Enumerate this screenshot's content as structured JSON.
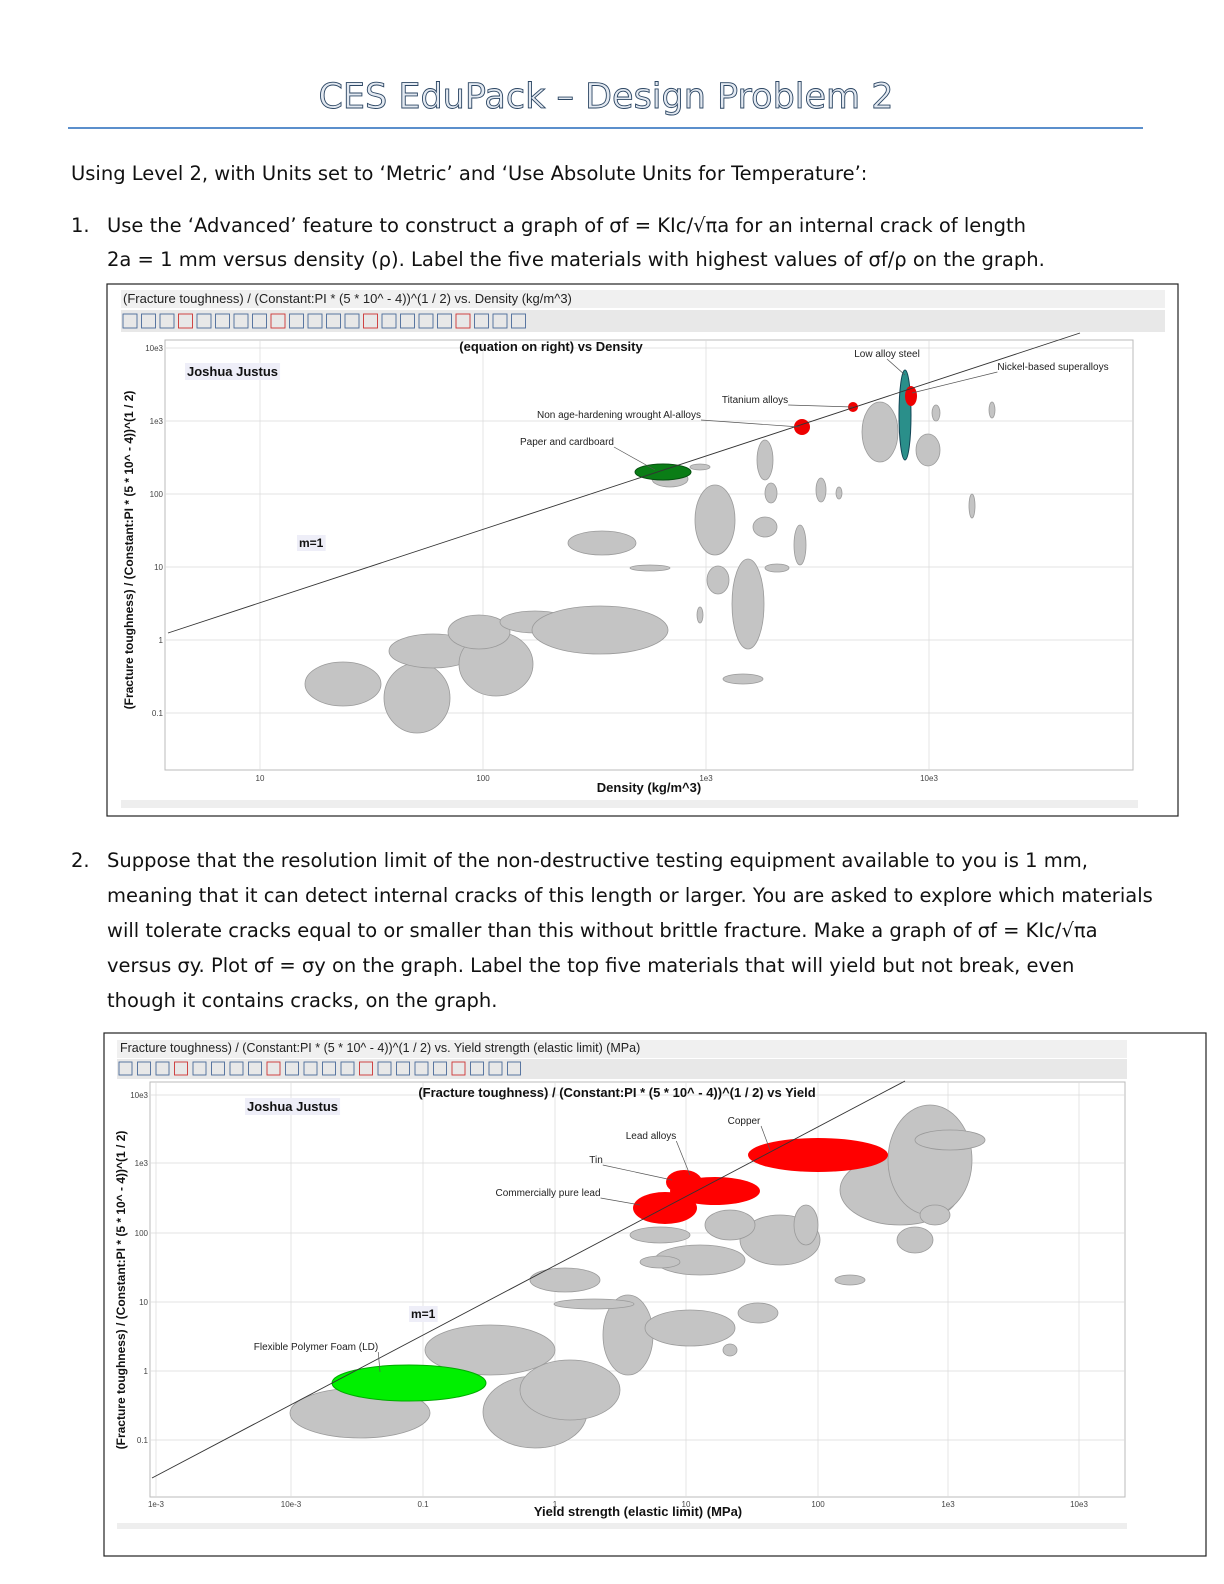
{
  "header": {
    "title": "CES EduPack – Design Problem 2"
  },
  "intro": "Using Level 2, with Units set to ‘Metric’ and ‘Use Absolute Units for Temperature’:",
  "questions": [
    {
      "number": "1.",
      "lines": [
        "Use the ‘Advanced’ feature to construct a graph of σf = KIc/√πa for an internal crack of length",
        "2a = 1 mm versus density (ρ).  Label the five materials with highest values of σf/ρ on the graph."
      ]
    },
    {
      "number": "2.",
      "lines": [
        "Suppose that the resolution limit of the non-destructive testing equipment available to you is 1 mm,",
        "meaning that it can detect internal cracks of this length or larger. You are asked to explore which materials",
        "will tolerate cracks equal to or smaller than this without brittle fracture.  Make a graph of σf = KIc/√πa",
        "versus σy.  Plot σf = σy on the graph.  Label the top five materials that will yield but not break, even",
        "though it contains cracks, on the graph."
      ]
    }
  ],
  "figures": [
    {
      "header": "(Fracture toughness) / (Constant:PI * (5 * 10^ - 4))^(1 / 2) vs. Density (kg/m^3)",
      "chart_title": "(equation on right) vs Density",
      "author": "Joshua Justus",
      "slope_label": "m=1",
      "x_axis_label": "Density (kg/m^3)",
      "y_axis_label": "(Fracture toughness) / (Constant:PI * (5 * 10^ - 4))^(1 / 2)",
      "xticks": [
        "10",
        "100",
        "1e3",
        "10e3"
      ],
      "yticks": [
        "10e3",
        "1e3",
        "100",
        "10",
        "1",
        "0.1"
      ],
      "annotations": [
        "Low alloy steel",
        "Nickel-based superalloys",
        "Titanium alloys",
        "Non age-hardening wrought Al-alloys",
        "Paper and cardboard"
      ]
    },
    {
      "header": "Fracture toughness) / (Constant:PI * (5 * 10^ - 4))^(1 / 2) vs. Yield strength (elastic limit) (MPa)",
      "chart_title": "(Fracture toughness) / (Constant:PI * (5 * 10^ - 4))^(1 / 2) vs Yield",
      "author": "Joshua Justus",
      "slope_label": "m=1",
      "x_axis_label": "Yield strength (elastic limit) (MPa)",
      "y_axis_label": "(Fracture toughness) / (Constant:PI * (5 * 10^ - 4))^(1 / 2)",
      "xticks": [
        "1e-3",
        "10e-3",
        "0.1",
        "1",
        "10",
        "100",
        "1e3",
        "10e3"
      ],
      "yticks": [
        "10e3",
        "1e3",
        "100",
        "10",
        "1",
        "0.1"
      ],
      "annotations": [
        "Copper",
        "Lead alloys",
        "Tin",
        "Commercially pure lead",
        "Flexible Polymer Foam (LD)"
      ]
    }
  ]
}
